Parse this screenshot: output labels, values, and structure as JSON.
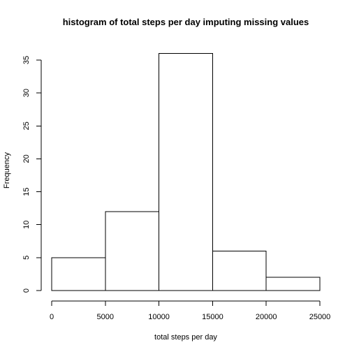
{
  "chart_data": {
    "type": "bar",
    "subtype": "histogram",
    "title": "histogram of total steps per day imputing missing values",
    "xlabel": "total steps per day",
    "ylabel": "Frequency",
    "bins": [
      {
        "start": 0,
        "end": 5000,
        "count": 5
      },
      {
        "start": 5000,
        "end": 10000,
        "count": 12
      },
      {
        "start": 10000,
        "end": 15000,
        "count": 36
      },
      {
        "start": 15000,
        "end": 20000,
        "count": 6
      },
      {
        "start": 20000,
        "end": 25000,
        "count": 2
      }
    ],
    "xticks": [
      0,
      5000,
      10000,
      15000,
      20000,
      25000
    ],
    "xtick_labels": [
      "0",
      "5000",
      "10000",
      "15000",
      "20000",
      "25000"
    ],
    "yticks": [
      0,
      5,
      10,
      15,
      20,
      25,
      30,
      35
    ],
    "ytick_labels": [
      "0",
      "5",
      "10",
      "15",
      "20",
      "25",
      "30",
      "35"
    ],
    "xlim": [
      0,
      25000
    ],
    "ylim": [
      0,
      36
    ],
    "bar_fill": "#ffffff",
    "bar_stroke": "#000000",
    "grid": false,
    "legend": "none"
  }
}
